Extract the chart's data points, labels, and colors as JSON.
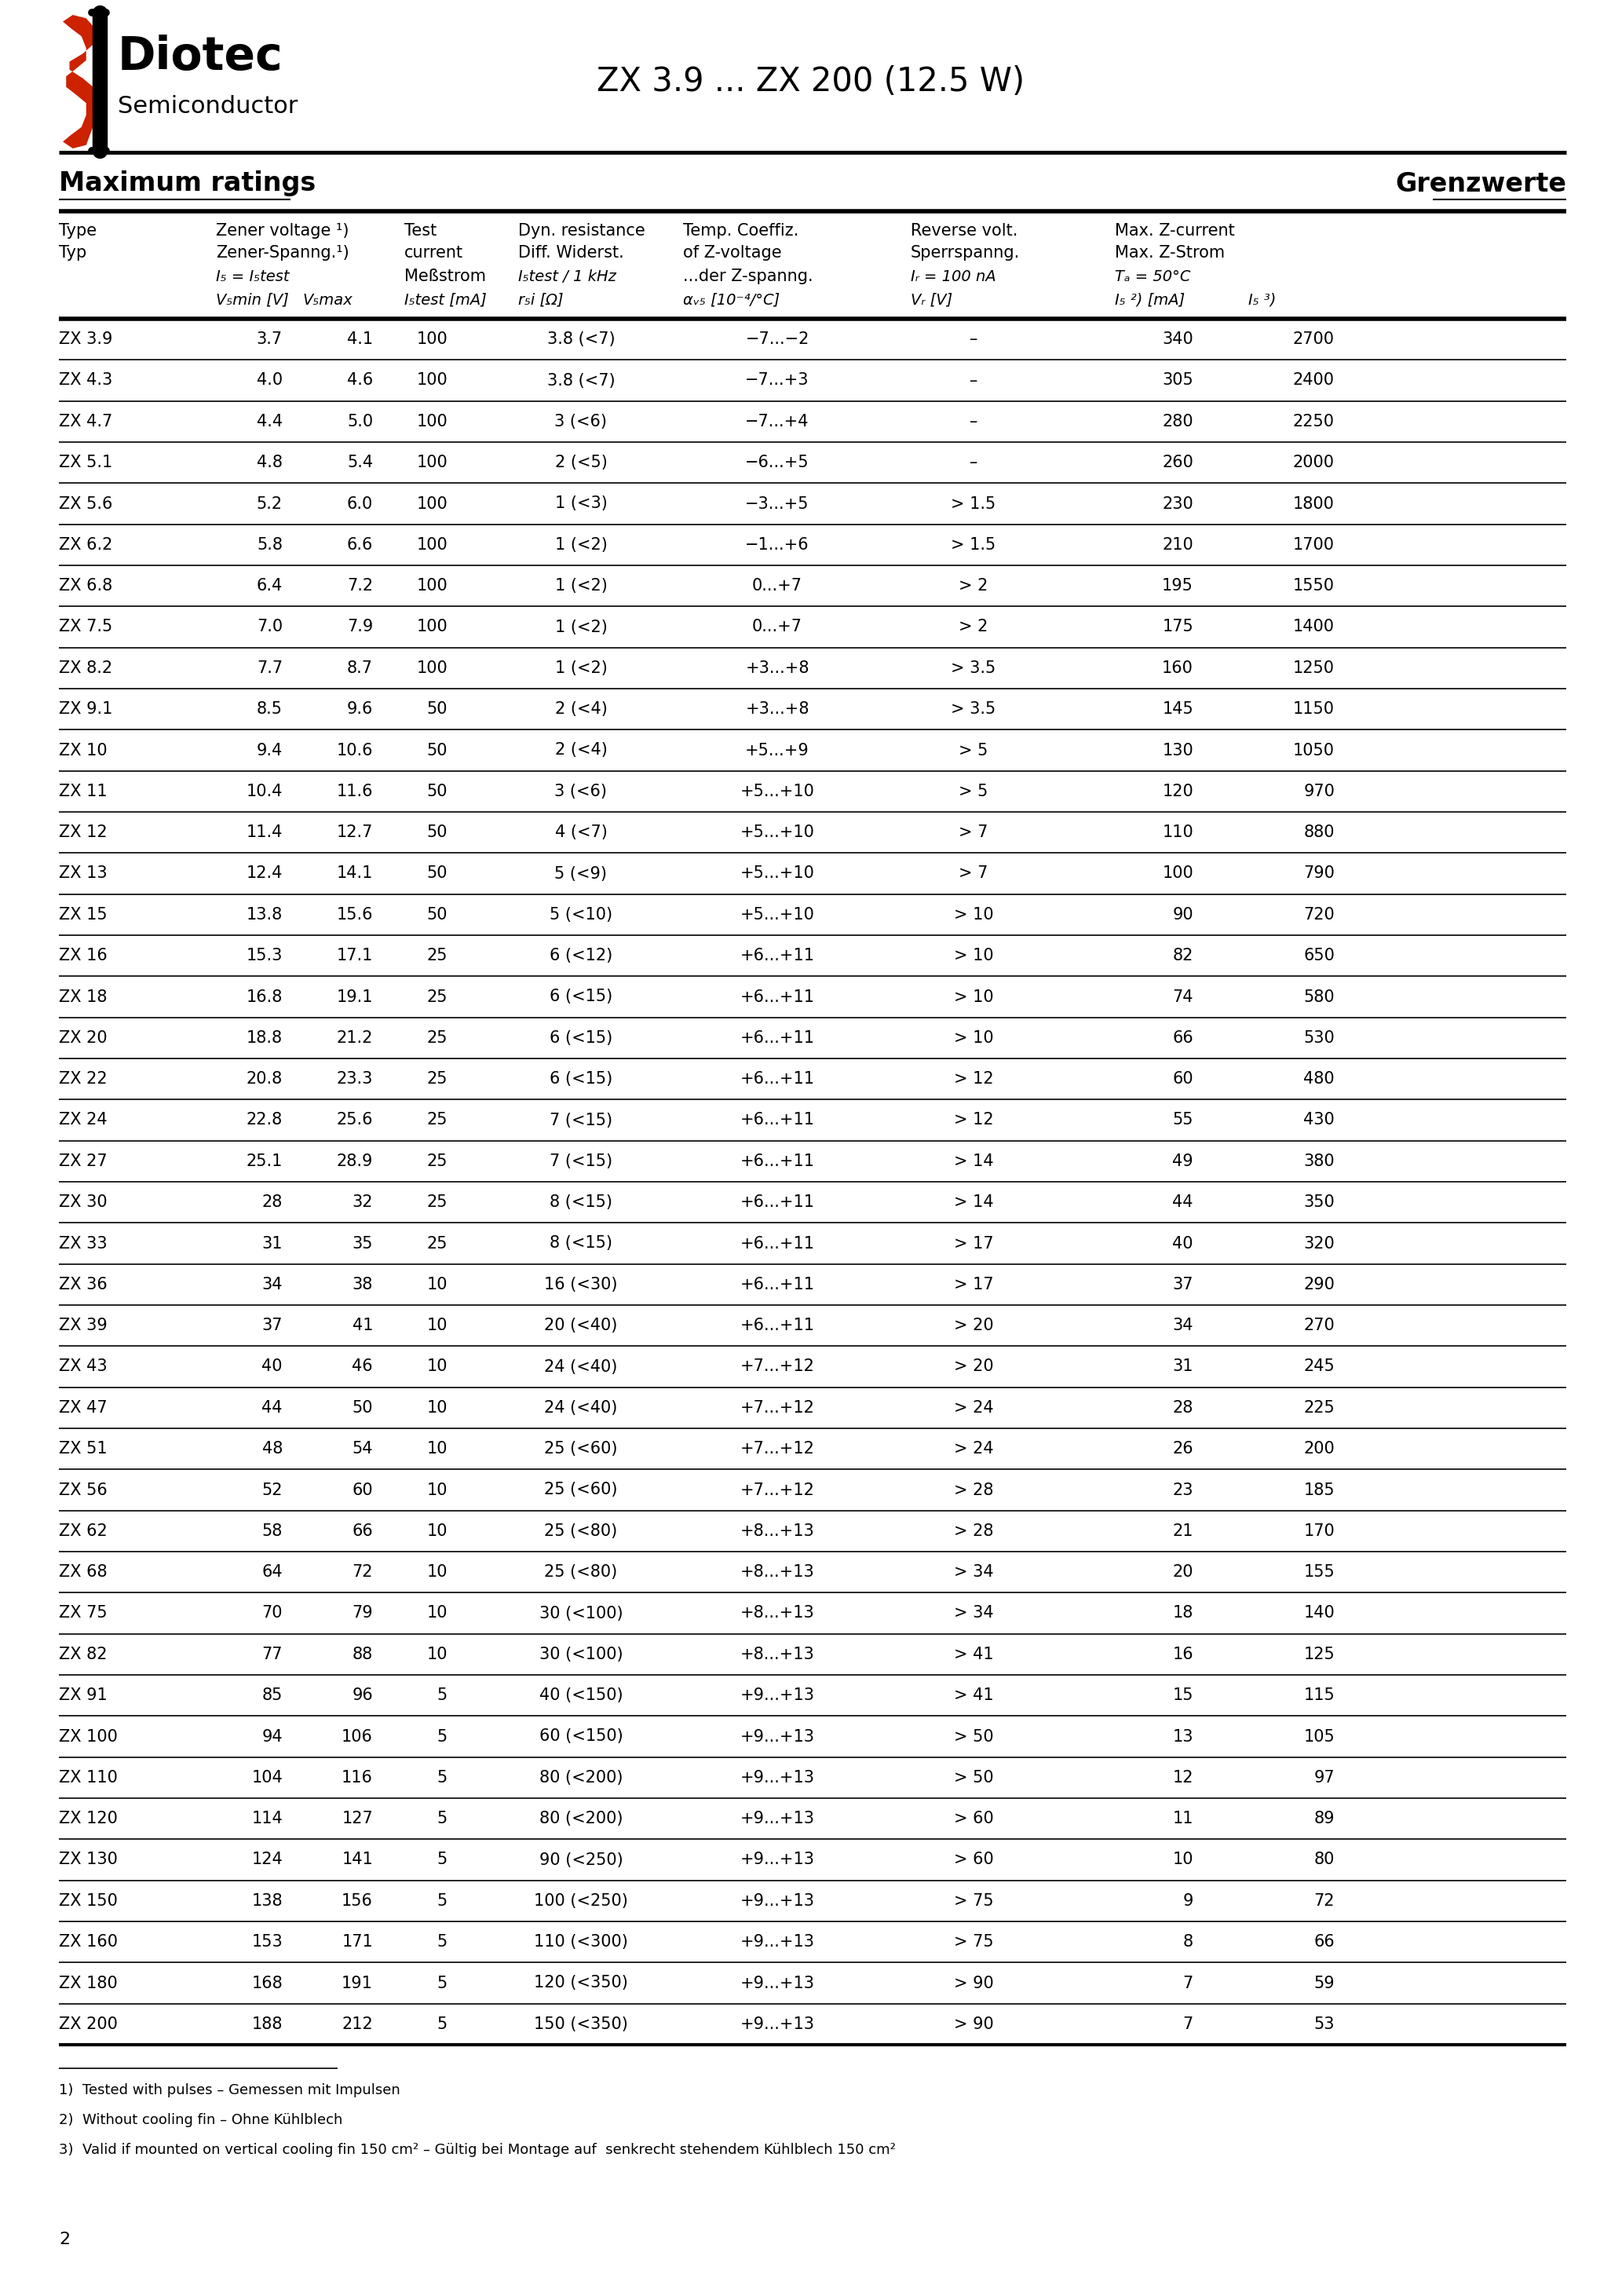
{
  "title": "ZX 3.9 ... ZX 200 (12.5 W)",
  "page_number": "2",
  "section_left": "Maximum ratings",
  "section_right": "Grenzwerte",
  "rows": [
    [
      "ZX 3.9",
      "3.7",
      "4.1",
      "100",
      "3.8 (<7)",
      "−7...−2",
      "–",
      "340",
      "2700"
    ],
    [
      "ZX 4.3",
      "4.0",
      "4.6",
      "100",
      "3.8 (<7)",
      "−7...+3",
      "–",
      "305",
      "2400"
    ],
    [
      "ZX 4.7",
      "4.4",
      "5.0",
      "100",
      "3 (<6)",
      "−7...+4",
      "–",
      "280",
      "2250"
    ],
    [
      "ZX 5.1",
      "4.8",
      "5.4",
      "100",
      "2 (<5)",
      "−6...+5",
      "–",
      "260",
      "2000"
    ],
    [
      "ZX 5.6",
      "5.2",
      "6.0",
      "100",
      "1 (<3)",
      "−3...+5",
      "> 1.5",
      "230",
      "1800"
    ],
    [
      "ZX 6.2",
      "5.8",
      "6.6",
      "100",
      "1 (<2)",
      "−1...+6",
      "> 1.5",
      "210",
      "1700"
    ],
    [
      "ZX 6.8",
      "6.4",
      "7.2",
      "100",
      "1 (<2)",
      "0...+7",
      "> 2",
      "195",
      "1550"
    ],
    [
      "ZX 7.5",
      "7.0",
      "7.9",
      "100",
      "1 (<2)",
      "0...+7",
      "> 2",
      "175",
      "1400"
    ],
    [
      "ZX 8.2",
      "7.7",
      "8.7",
      "100",
      "1 (<2)",
      "+3...+8",
      "> 3.5",
      "160",
      "1250"
    ],
    [
      "ZX 9.1",
      "8.5",
      "9.6",
      "50",
      "2 (<4)",
      "+3...+8",
      "> 3.5",
      "145",
      "1150"
    ],
    [
      "ZX 10",
      "9.4",
      "10.6",
      "50",
      "2 (<4)",
      "+5...+9",
      "> 5",
      "130",
      "1050"
    ],
    [
      "ZX 11",
      "10.4",
      "11.6",
      "50",
      "3 (<6)",
      "+5...+10",
      "> 5",
      "120",
      "970"
    ],
    [
      "ZX 12",
      "11.4",
      "12.7",
      "50",
      "4 (<7)",
      "+5...+10",
      "> 7",
      "110",
      "880"
    ],
    [
      "ZX 13",
      "12.4",
      "14.1",
      "50",
      "5 (<9)",
      "+5...+10",
      "> 7",
      "100",
      "790"
    ],
    [
      "ZX 15",
      "13.8",
      "15.6",
      "50",
      "5 (<10)",
      "+5...+10",
      "> 10",
      "90",
      "720"
    ],
    [
      "ZX 16",
      "15.3",
      "17.1",
      "25",
      "6 (<12)",
      "+6...+11",
      "> 10",
      "82",
      "650"
    ],
    [
      "ZX 18",
      "16.8",
      "19.1",
      "25",
      "6 (<15)",
      "+6...+11",
      "> 10",
      "74",
      "580"
    ],
    [
      "ZX 20",
      "18.8",
      "21.2",
      "25",
      "6 (<15)",
      "+6...+11",
      "> 10",
      "66",
      "530"
    ],
    [
      "ZX 22",
      "20.8",
      "23.3",
      "25",
      "6 (<15)",
      "+6...+11",
      "> 12",
      "60",
      "480"
    ],
    [
      "ZX 24",
      "22.8",
      "25.6",
      "25",
      "7 (<15)",
      "+6...+11",
      "> 12",
      "55",
      "430"
    ],
    [
      "ZX 27",
      "25.1",
      "28.9",
      "25",
      "7 (<15)",
      "+6...+11",
      "> 14",
      "49",
      "380"
    ],
    [
      "ZX 30",
      "28",
      "32",
      "25",
      "8 (<15)",
      "+6...+11",
      "> 14",
      "44",
      "350"
    ],
    [
      "ZX 33",
      "31",
      "35",
      "25",
      "8 (<15)",
      "+6...+11",
      "> 17",
      "40",
      "320"
    ],
    [
      "ZX 36",
      "34",
      "38",
      "10",
      "16 (<30)",
      "+6...+11",
      "> 17",
      "37",
      "290"
    ],
    [
      "ZX 39",
      "37",
      "41",
      "10",
      "20 (<40)",
      "+6...+11",
      "> 20",
      "34",
      "270"
    ],
    [
      "ZX 43",
      "40",
      "46",
      "10",
      "24 (<40)",
      "+7...+12",
      "> 20",
      "31",
      "245"
    ],
    [
      "ZX 47",
      "44",
      "50",
      "10",
      "24 (<40)",
      "+7...+12",
      "> 24",
      "28",
      "225"
    ],
    [
      "ZX 51",
      "48",
      "54",
      "10",
      "25 (<60)",
      "+7...+12",
      "> 24",
      "26",
      "200"
    ],
    [
      "ZX 56",
      "52",
      "60",
      "10",
      "25 (<60)",
      "+7...+12",
      "> 28",
      "23",
      "185"
    ],
    [
      "ZX 62",
      "58",
      "66",
      "10",
      "25 (<80)",
      "+8...+13",
      "> 28",
      "21",
      "170"
    ],
    [
      "ZX 68",
      "64",
      "72",
      "10",
      "25 (<80)",
      "+8...+13",
      "> 34",
      "20",
      "155"
    ],
    [
      "ZX 75",
      "70",
      "79",
      "10",
      "30 (<100)",
      "+8...+13",
      "> 34",
      "18",
      "140"
    ],
    [
      "ZX 82",
      "77",
      "88",
      "10",
      "30 (<100)",
      "+8...+13",
      "> 41",
      "16",
      "125"
    ],
    [
      "ZX 91",
      "85",
      "96",
      "5",
      "40 (<150)",
      "+9...+13",
      "> 41",
      "15",
      "115"
    ],
    [
      "ZX 100",
      "94",
      "106",
      "5",
      "60 (<150)",
      "+9...+13",
      "> 50",
      "13",
      "105"
    ],
    [
      "ZX 110",
      "104",
      "116",
      "5",
      "80 (<200)",
      "+9...+13",
      "> 50",
      "12",
      "97"
    ],
    [
      "ZX 120",
      "114",
      "127",
      "5",
      "80 (<200)",
      "+9...+13",
      "> 60",
      "11",
      "89"
    ],
    [
      "ZX 130",
      "124",
      "141",
      "5",
      "90 (<250)",
      "+9...+13",
      "> 60",
      "10",
      "80"
    ],
    [
      "ZX 150",
      "138",
      "156",
      "5",
      "100 (<250)",
      "+9...+13",
      "> 75",
      "9",
      "72"
    ],
    [
      "ZX 160",
      "153",
      "171",
      "5",
      "110 (<300)",
      "+9...+13",
      "> 75",
      "8",
      "66"
    ],
    [
      "ZX 180",
      "168",
      "191",
      "5",
      "120 (<350)",
      "+9...+13",
      "> 90",
      "7",
      "59"
    ],
    [
      "ZX 200",
      "188",
      "212",
      "5",
      "150 (<350)",
      "+9...+13",
      "> 90",
      "7",
      "53"
    ]
  ],
  "footnotes": [
    "1)  Tested with pulses – Gemessen mit Impulsen",
    "2)  Without cooling fin – Ohne Kühlblech",
    "3)  Valid if mounted on vertical cooling fin 150 cm² – Gültig bei Montage auf  senkrecht stehendem Kühlblech 150 cm²"
  ]
}
